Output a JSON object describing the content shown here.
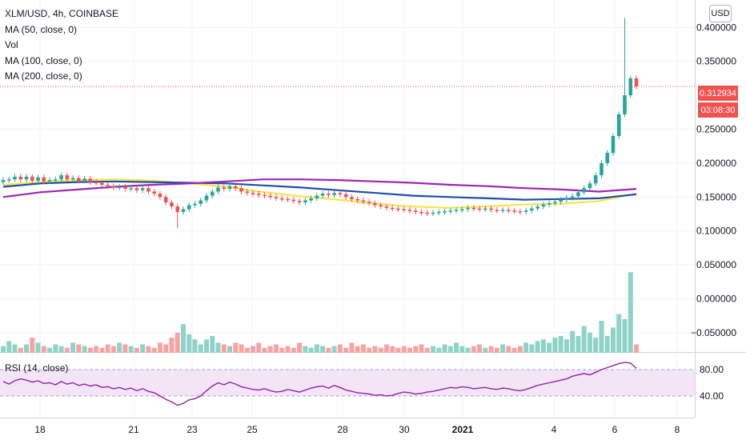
{
  "legend": {
    "symbol": "XLM/USD, 4h, COINBASE",
    "ma50": "MA (50, close, 0)",
    "vol": "Vol",
    "ma100": "MA (100, close, 0)",
    "ma200": "MA (200, close, 0)"
  },
  "rsi_label": "RSI (14, close)",
  "currency_button": "USD",
  "price_tag": "0.312934",
  "countdown_tag": "03:08:30",
  "colors": {
    "up": "#26a69a",
    "down": "#ef5350",
    "ma50": "#f7e34b",
    "ma100": "#1e4fa8",
    "ma200": "#9c27b0",
    "rsi_line": "#8e24aa",
    "rsi_band": "#f3e5f5",
    "grid": "#f0f3fa",
    "axis_text": "#131722"
  },
  "chart_data": [
    {
      "type": "line",
      "title": "XLM/USD, 4h, COINBASE",
      "candles": "4h OHLC (approximate)",
      "x_ticks": [
        "18",
        "21",
        "23",
        "25",
        "28",
        "30",
        "2021",
        "4",
        "6",
        "8"
      ],
      "price_ticks": [
        "0.400000",
        "0.350000",
        "0.250000",
        "0.200000",
        "0.150000",
        "0.100000",
        "0.050000",
        "0.000000",
        "−0.050000"
      ],
      "ylim": [
        -0.065,
        0.445
      ],
      "last_price": 0.312934,
      "series": [
        {
          "name": "MA (50, close, 0)",
          "values": [
            0.168,
            0.172,
            0.175,
            0.176,
            0.174,
            0.17,
            0.165,
            0.157,
            0.151,
            0.146,
            0.14,
            0.136,
            0.134,
            0.136,
            0.139,
            0.14,
            0.144,
            0.155
          ]
        },
        {
          "name": "MA (100, close, 0)",
          "values": [
            0.165,
            0.17,
            0.172,
            0.173,
            0.172,
            0.171,
            0.17,
            0.167,
            0.164,
            0.16,
            0.156,
            0.152,
            0.15,
            0.148,
            0.146,
            0.147,
            0.148,
            0.154
          ]
        },
        {
          "name": "MA (200, close, 0)",
          "values": [
            0.15,
            0.157,
            0.161,
            0.165,
            0.168,
            0.17,
            0.173,
            0.176,
            0.176,
            0.175,
            0.173,
            0.171,
            0.168,
            0.166,
            0.163,
            0.161,
            0.158,
            0.162
          ]
        }
      ],
      "candle_closes": [
        0.175,
        0.176,
        0.18,
        0.176,
        0.18,
        0.174,
        0.179,
        0.173,
        0.175,
        0.176,
        0.182,
        0.176,
        0.178,
        0.174,
        0.177,
        0.172,
        0.171,
        0.168,
        0.166,
        0.164,
        0.165,
        0.162,
        0.163,
        0.16,
        0.163,
        0.158,
        0.155,
        0.15,
        0.142,
        0.136,
        0.128,
        0.132,
        0.138,
        0.14,
        0.145,
        0.152,
        0.158,
        0.164,
        0.162,
        0.166,
        0.163,
        0.158,
        0.156,
        0.155,
        0.153,
        0.152,
        0.15,
        0.148,
        0.147,
        0.146,
        0.144,
        0.142,
        0.145,
        0.148,
        0.152,
        0.155,
        0.153,
        0.156,
        0.154,
        0.15,
        0.147,
        0.145,
        0.143,
        0.141,
        0.138,
        0.136,
        0.134,
        0.133,
        0.132,
        0.131,
        0.13,
        0.128,
        0.127,
        0.126,
        0.127,
        0.128,
        0.129,
        0.13,
        0.131,
        0.132,
        0.134,
        0.133,
        0.132,
        0.133,
        0.131,
        0.13,
        0.131,
        0.13,
        0.129,
        0.128,
        0.13,
        0.133,
        0.136,
        0.139,
        0.141,
        0.143,
        0.146,
        0.149,
        0.151,
        0.157,
        0.163,
        0.17,
        0.182,
        0.2,
        0.215,
        0.24,
        0.272,
        0.3,
        0.325,
        0.313
      ]
    },
    {
      "type": "bar",
      "title": "Vol",
      "values": [
        0.4,
        0.7,
        0.5,
        0.3,
        0.5,
        0.9,
        0.6,
        0.4,
        0.3,
        0.5,
        0.4,
        0.3,
        0.6,
        0.5,
        0.4,
        0.3,
        0.4,
        0.3,
        0.5,
        0.4,
        0.6,
        0.5,
        0.4,
        0.3,
        0.5,
        0.4,
        0.3,
        0.6,
        0.5,
        0.9,
        1.2,
        1.7,
        1.1,
        0.8,
        0.5,
        0.8,
        1.0,
        0.6,
        0.5,
        0.4,
        0.6,
        0.5,
        0.3,
        0.4,
        0.6,
        0.3,
        0.4,
        0.5,
        0.3,
        0.4,
        0.3,
        0.6,
        0.4,
        0.3,
        0.5,
        0.4,
        0.3,
        0.4,
        0.5,
        0.3,
        0.6,
        0.4,
        0.5,
        0.3,
        0.4,
        0.3,
        0.5,
        0.4,
        0.3,
        0.4,
        0.3,
        0.4,
        0.5,
        0.3,
        0.4,
        0.3,
        0.5,
        0.4,
        0.6,
        0.4,
        0.3,
        0.4,
        0.5,
        0.3,
        0.4,
        0.3,
        0.5,
        0.4,
        0.3,
        0.4,
        0.6,
        0.5,
        0.7,
        0.8,
        0.6,
        0.9,
        1.0,
        0.8,
        1.3,
        1.0,
        1.6,
        1.2,
        0.9,
        1.9,
        1.0,
        1.5,
        2.3,
        2.0,
        4.8,
        0.5
      ]
    },
    {
      "type": "line",
      "title": "RSI (14, close)",
      "rsi_ticks": [
        "80.00",
        "40.00"
      ],
      "ylim": [
        15,
        95
      ],
      "values": [
        62,
        58,
        63,
        66,
        64,
        61,
        63,
        59,
        60,
        57,
        62,
        58,
        60,
        56,
        58,
        55,
        57,
        53,
        54,
        51,
        53,
        50,
        52,
        48,
        51,
        47,
        45,
        40,
        35,
        31,
        26,
        29,
        34,
        36,
        40,
        48,
        55,
        60,
        57,
        61,
        58,
        54,
        52,
        50,
        49,
        51,
        48,
        46,
        47,
        50,
        48,
        46,
        49,
        52,
        54,
        55,
        52,
        56,
        53,
        49,
        47,
        45,
        44,
        43,
        41,
        42,
        40,
        41,
        44,
        46,
        45,
        43,
        44,
        46,
        47,
        49,
        51,
        53,
        52,
        54,
        53,
        51,
        52,
        53,
        51,
        50,
        52,
        51,
        49,
        48,
        50,
        53,
        56,
        58,
        60,
        62,
        64,
        66,
        70,
        72,
        74,
        72,
        76,
        80,
        83,
        86,
        89,
        91,
        90,
        82
      ]
    }
  ]
}
